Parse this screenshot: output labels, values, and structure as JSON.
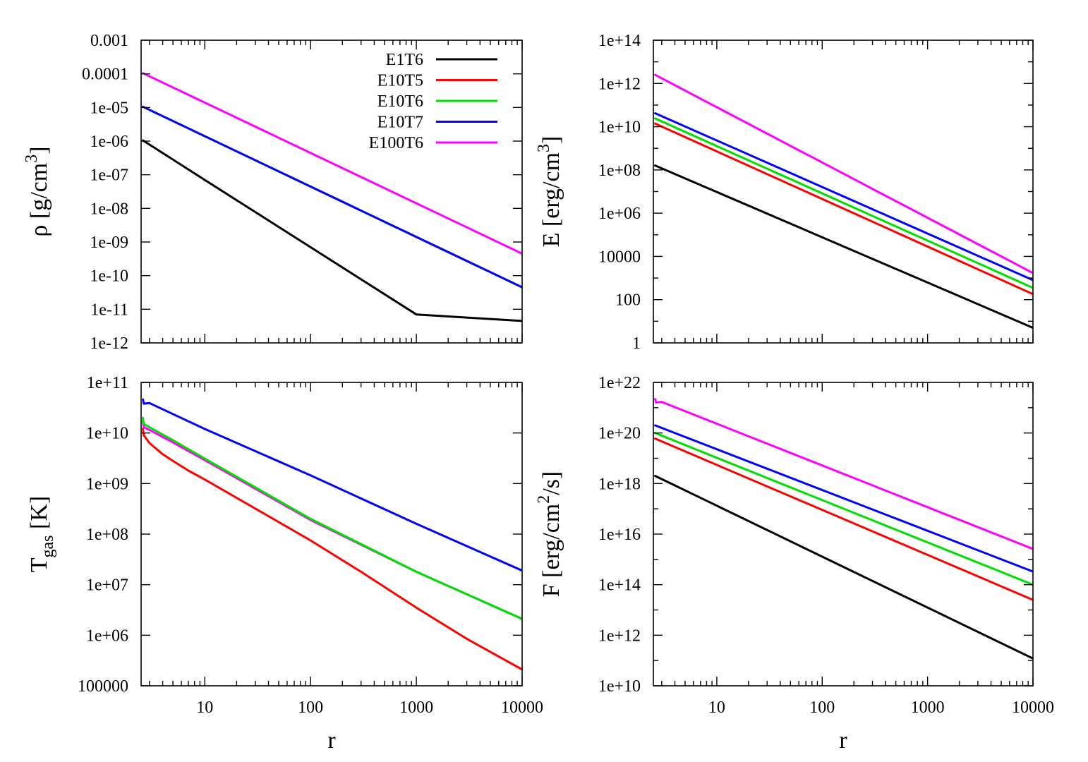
{
  "colors": {
    "E1T6": "#000000",
    "E10T5": "#ff0000",
    "E10T6": "#00dd00",
    "E10T7": "#0000ff",
    "E100T6": "#ff00ff"
  },
  "legend": {
    "placement": "top-right of first panel",
    "entries": [
      "E1T6",
      "E10T5",
      "E10T6",
      "E10T7",
      "E100T6"
    ]
  },
  "chart_data": [
    {
      "type": "line",
      "panel": "top-left",
      "ylabel": "ρ [g/cm3]",
      "ylabel_main": "ρ [g/cm",
      "ylabel_sup": "3",
      "ylabel_tail": "]",
      "xlabel": "",
      "xscale": "log",
      "yscale": "log",
      "xlim": [
        2.5,
        10000
      ],
      "ylim": [
        1e-12,
        0.001
      ],
      "xticks": [],
      "yticks": [
        {
          "v": 1e-12,
          "label": "1e-12"
        },
        {
          "v": 1e-11,
          "label": "1e-11"
        },
        {
          "v": 1e-10,
          "label": "1e-10"
        },
        {
          "v": 1e-09,
          "label": "1e-09"
        },
        {
          "v": 1e-08,
          "label": "1e-08"
        },
        {
          "v": 1e-07,
          "label": "1e-07"
        },
        {
          "v": 1e-06,
          "label": "1e-06"
        },
        {
          "v": 1e-05,
          "label": "1e-05"
        },
        {
          "v": 0.0001,
          "label": "0.0001"
        },
        {
          "v": 0.001,
          "label": "0.001"
        }
      ],
      "yminor": false,
      "series": [
        {
          "name": "E1T6",
          "x": [
            2.6,
            10,
            100,
            1000,
            10000
          ],
          "y": [
            1.05e-06,
            7e-08,
            7e-10,
            7e-12,
            4.5e-12
          ]
        },
        {
          "name": "E10T5",
          "x": [
            2.6,
            10000
          ],
          "y": [
            1.05e-05,
            4.5e-11
          ]
        },
        {
          "name": "E10T6",
          "x": [
            2.6,
            10000
          ],
          "y": [
            1.05e-05,
            4.5e-11
          ]
        },
        {
          "name": "E10T7",
          "x": [
            2.6,
            10000
          ],
          "y": [
            1.05e-05,
            4.5e-11
          ]
        },
        {
          "name": "E100T6",
          "x": [
            2.6,
            10000
          ],
          "y": [
            0.000105,
            4.5e-10
          ]
        }
      ]
    },
    {
      "type": "line",
      "panel": "top-right",
      "ylabel": "E [erg/cm3]",
      "ylabel_main": "E [erg/cm",
      "ylabel_sup": "3",
      "ylabel_tail": "]",
      "xlabel": "",
      "xscale": "log",
      "yscale": "log",
      "xlim": [
        2.5,
        10000
      ],
      "ylim": [
        1,
        100000000000000.0
      ],
      "xticks": [],
      "yticks": [
        {
          "v": 1,
          "label": "1"
        },
        {
          "v": 100,
          "label": "100"
        },
        {
          "v": 10000,
          "label": "10000"
        },
        {
          "v": 1000000.0,
          "label": "1e+06"
        },
        {
          "v": 100000000.0,
          "label": "1e+08"
        },
        {
          "v": 10000000000.0,
          "label": "1e+10"
        },
        {
          "v": 1000000000000.0,
          "label": "1e+12"
        },
        {
          "v": 100000000000000.0,
          "label": "1e+14"
        }
      ],
      "yminor": true,
      "series": [
        {
          "name": "E1T6",
          "x": [
            2.6,
            10000
          ],
          "y": [
            160000000.0,
            5
          ]
        },
        {
          "name": "E10T5",
          "x": [
            2.6,
            10000
          ],
          "y": [
            14000000000.0,
            180
          ]
        },
        {
          "name": "E10T6",
          "x": [
            2.6,
            10000
          ],
          "y": [
            24000000000.0,
            350
          ]
        },
        {
          "name": "E10T7",
          "x": [
            2.6,
            10000
          ],
          "y": [
            42000000000.0,
            800
          ]
        },
        {
          "name": "E100T6",
          "x": [
            2.6,
            10000
          ],
          "y": [
            2500000000000.0,
            1700
          ]
        }
      ]
    },
    {
      "type": "line",
      "panel": "bottom-left",
      "ylabel": "Tgas [K]",
      "ylabel_main": "T",
      "ylabel_sub": "gas",
      "ylabel_tail": " [K]",
      "xlabel": "r",
      "xscale": "log",
      "yscale": "log",
      "xlim": [
        2.5,
        10000
      ],
      "ylim": [
        100000,
        100000000000.0
      ],
      "xticks": [
        {
          "v": 10,
          "label": "10"
        },
        {
          "v": 100,
          "label": "100"
        },
        {
          "v": 1000,
          "label": "1000"
        },
        {
          "v": 10000,
          "label": "10000"
        }
      ],
      "yticks": [
        {
          "v": 100000.0,
          "label": "100000"
        },
        {
          "v": 1000000.0,
          "label": "1e+06"
        },
        {
          "v": 10000000.0,
          "label": "1e+07"
        },
        {
          "v": 100000000.0,
          "label": "1e+08"
        },
        {
          "v": 1000000000.0,
          "label": "1e+09"
        },
        {
          "v": 10000000000.0,
          "label": "1e+10"
        },
        {
          "v": 100000000000.0,
          "label": "1e+11"
        }
      ],
      "yminor": false,
      "series": [
        {
          "name": "E10T5",
          "x": [
            2.6,
            2.65,
            3,
            4,
            5,
            7,
            10,
            30,
            100,
            300,
            1000,
            3000,
            10000
          ],
          "y": [
            12000000000.0,
            9000000000.0,
            6300000000.0,
            3800000000.0,
            2800000000.0,
            1800000000.0,
            1200000000.0,
            320000000.0,
            75000000.0,
            18000000.0,
            3500000.0,
            850000.0,
            210000.0
          ]
        },
        {
          "name": "E100T6",
          "x": [
            2.6,
            2.65,
            3,
            5,
            10,
            100,
            1000,
            10000
          ],
          "y": [
            17000000000.0,
            13000000000.0,
            11500000000.0,
            6500000000.0,
            2900000000.0,
            190000000.0,
            18000000.0,
            2100000.0
          ]
        },
        {
          "name": "E10T6",
          "x": [
            2.6,
            2.65,
            3,
            5,
            10,
            100,
            1000,
            10000
          ],
          "y": [
            20000000000.0,
            15000000000.0,
            13000000000.0,
            7200000000.0,
            3100000000.0,
            200000000.0,
            18000000.0,
            2100000.0
          ]
        },
        {
          "name": "E10T7",
          "x": [
            2.6,
            2.65,
            3,
            10,
            100,
            1000,
            10000
          ],
          "y": [
            46000000000.0,
            38000000000.0,
            39000000000.0,
            12000000000.0,
            1450000000.0,
            160000000.0,
            19000000.0
          ]
        }
      ]
    },
    {
      "type": "line",
      "panel": "bottom-right",
      "ylabel": "F [erg/cm2/s]",
      "ylabel_main": "F [erg/cm",
      "ylabel_sup": "2",
      "ylabel_tail": "/s]",
      "xlabel": "r",
      "xscale": "log",
      "yscale": "log",
      "xlim": [
        2.5,
        10000
      ],
      "ylim": [
        10000000000.0,
        1e+22
      ],
      "xticks": [
        {
          "v": 10,
          "label": "10"
        },
        {
          "v": 100,
          "label": "100"
        },
        {
          "v": 1000,
          "label": "1000"
        },
        {
          "v": 10000,
          "label": "10000"
        }
      ],
      "yticks": [
        {
          "v": 10000000000.0,
          "label": "1e+10"
        },
        {
          "v": 1000000000000.0,
          "label": "1e+12"
        },
        {
          "v": 100000000000000.0,
          "label": "1e+14"
        },
        {
          "v": 1e+16,
          "label": "1e+16"
        },
        {
          "v": 1e+18,
          "label": "1e+18"
        },
        {
          "v": 1e+20,
          "label": "1e+20"
        },
        {
          "v": 1e+22,
          "label": "1e+22"
        }
      ],
      "yminor": true,
      "series": [
        {
          "name": "E1T6",
          "x": [
            2.6,
            10000
          ],
          "y": [
            2e+18,
            120000000000.0
          ]
        },
        {
          "name": "E10T5",
          "x": [
            2.6,
            10000
          ],
          "y": [
            6e+19,
            25000000000000.0
          ]
        },
        {
          "name": "E10T6",
          "x": [
            2.6,
            10000
          ],
          "y": [
            1e+20,
            100000000000000.0
          ]
        },
        {
          "name": "E10T7",
          "x": [
            2.6,
            10000
          ],
          "y": [
            2e+20,
            330000000000000.0
          ]
        },
        {
          "name": "E100T6",
          "x": [
            2.6,
            2.65,
            3,
            10000
          ],
          "y": [
            2.2e+21,
            1.6e+21,
            1.7e+21,
            2600000000000000.0
          ]
        }
      ]
    }
  ]
}
